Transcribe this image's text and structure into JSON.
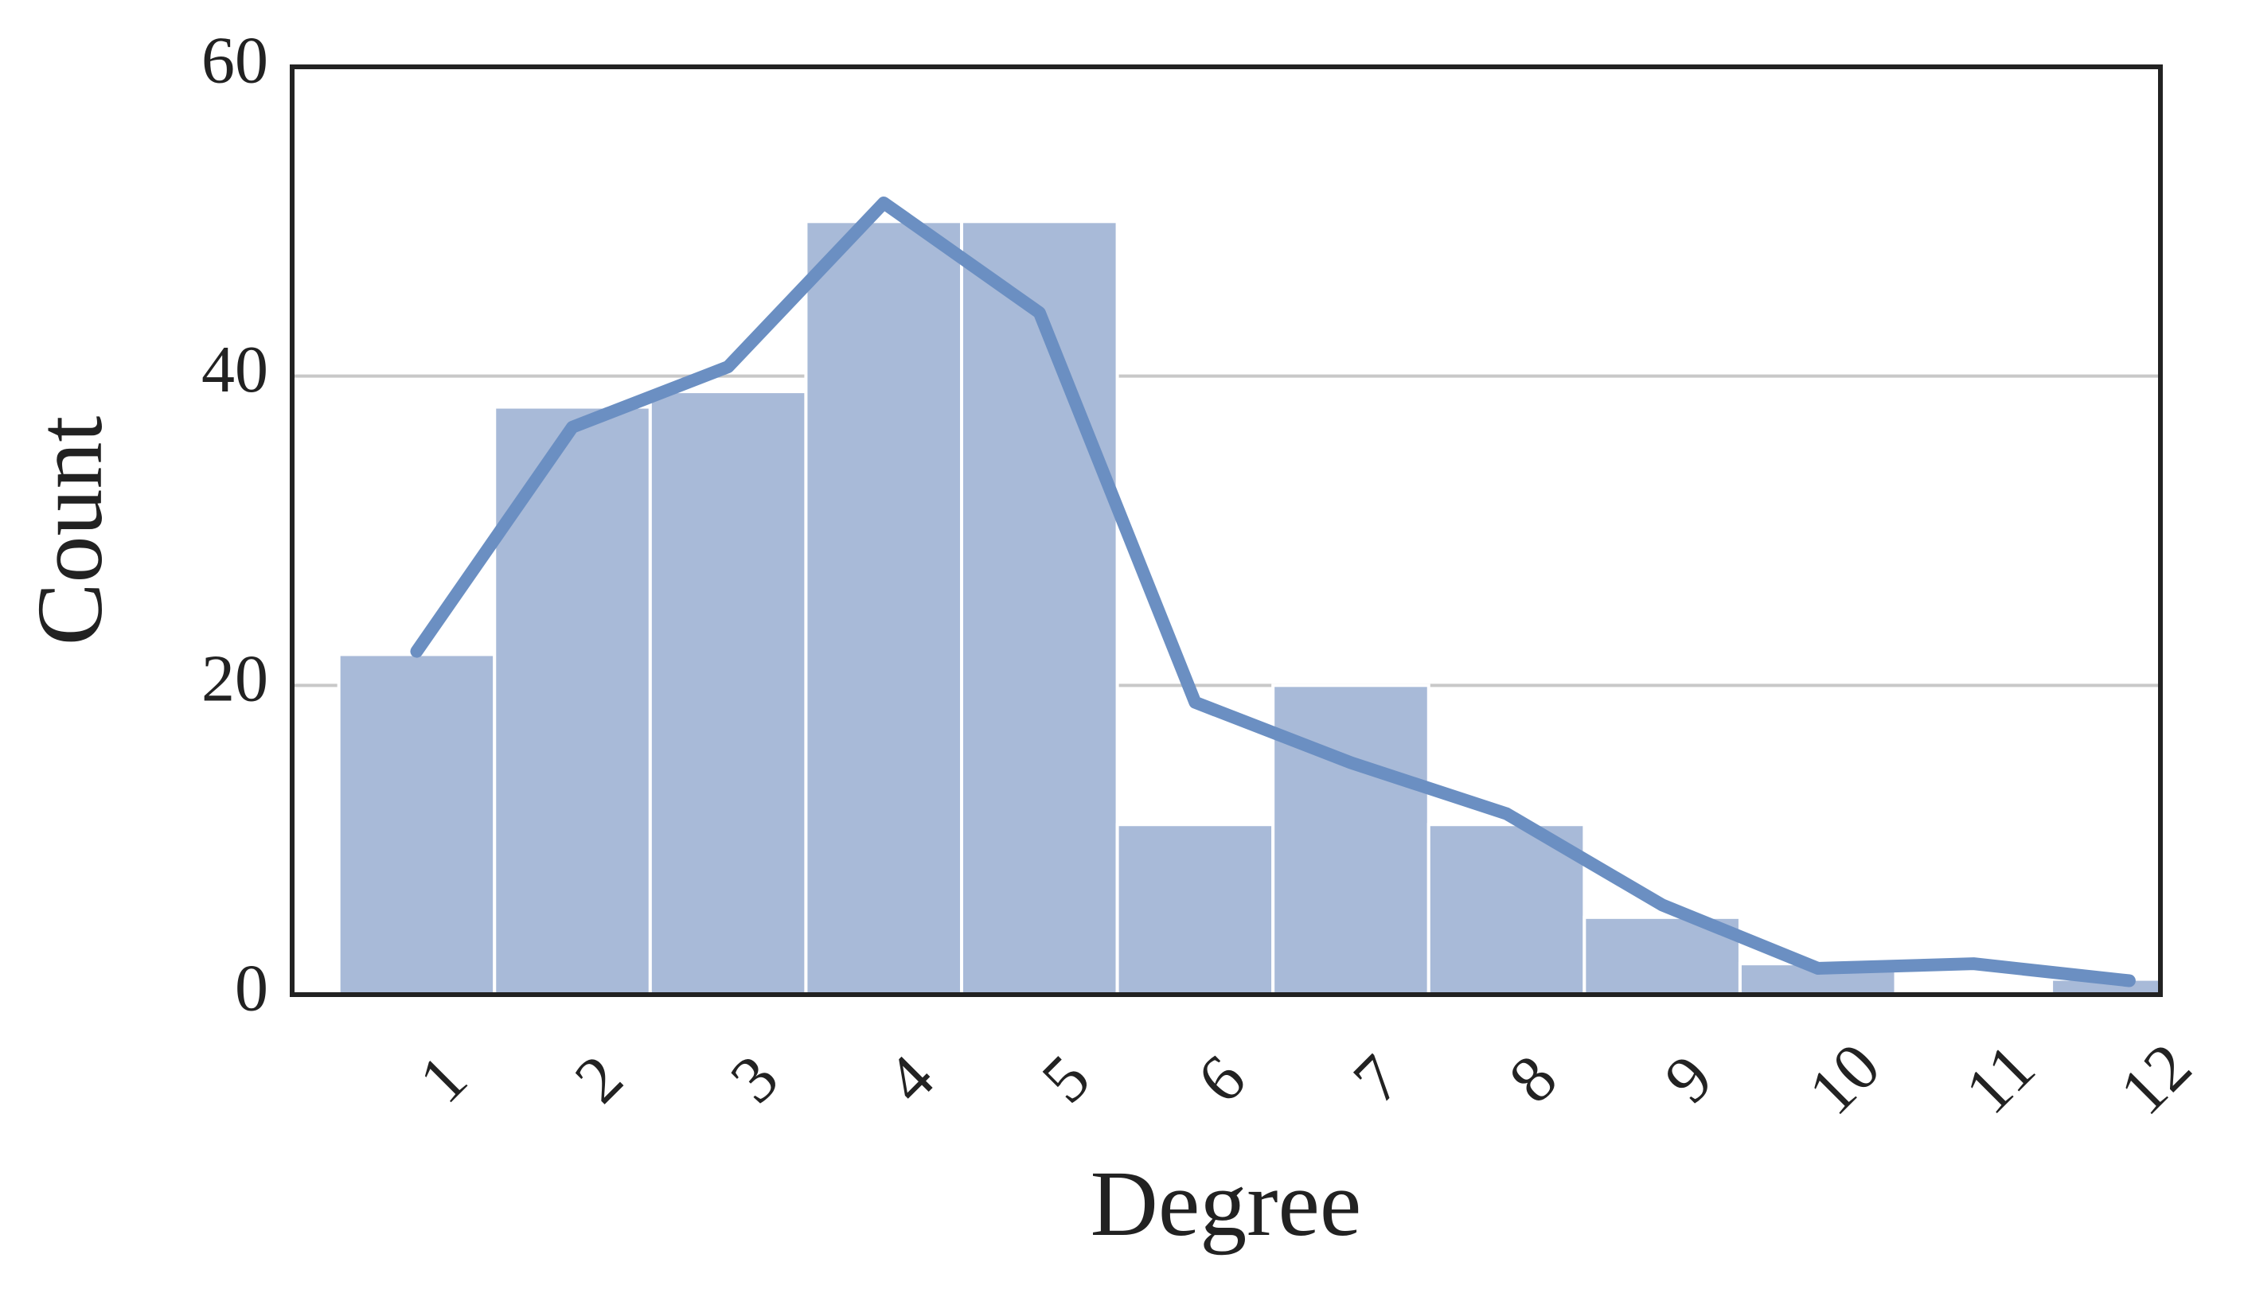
{
  "chart_data": {
    "type": "histogram",
    "xlabel": "Degree",
    "ylabel": "Count",
    "bins": [
      0.3,
      1.3,
      2.3,
      3.3,
      4.3,
      5.3,
      6.3,
      7.3,
      8.3,
      9.3,
      10.3,
      11.3,
      12.3
    ],
    "values": [
      22,
      38,
      39,
      50,
      50,
      11,
      20,
      11,
      5,
      2,
      0,
      1
    ],
    "color": "#a8bad8",
    "line": {
      "x": [
        0.8,
        1.8,
        2.8,
        3.8,
        4.8,
        5.8,
        6.8,
        7.8,
        8.8,
        9.8,
        10.8,
        11.8
      ],
      "values": [
        22.2,
        36.7,
        40.6,
        51.2,
        44.1,
        18.9,
        15.0,
        11.7,
        5.8,
        1.7,
        2.0,
        0.9
      ],
      "color": "#6b8fc2"
    },
    "xlim": [
      0,
      12
    ],
    "ylim": [
      0,
      60
    ],
    "xticks": [
      1,
      2,
      3,
      4,
      5,
      6,
      7,
      8,
      9,
      10,
      11,
      12
    ],
    "yticks": [
      0,
      20,
      40,
      60
    ],
    "grid": true
  }
}
